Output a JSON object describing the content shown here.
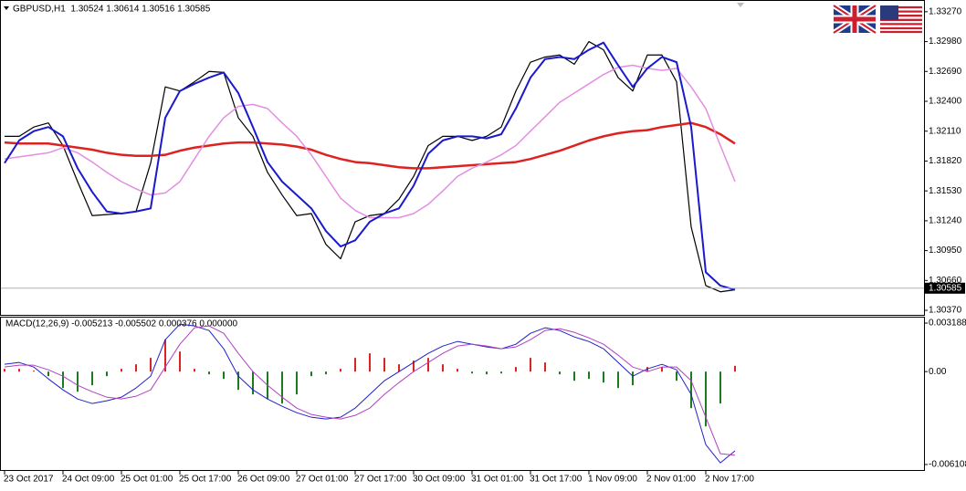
{
  "chart_data": [
    {
      "type": "line",
      "title": "GBPUSD,H1  1.30524 1.30614 1.30516 1.30585",
      "categories": [
        "23 Oct 2017",
        null,
        null,
        null,
        "24 Oct 09:00",
        null,
        null,
        null,
        "25 Oct 01:00",
        null,
        null,
        null,
        "25 Oct 17:00",
        null,
        null,
        null,
        "26 Oct 09:00",
        null,
        null,
        null,
        "27 Oct 01:00",
        null,
        null,
        null,
        "27 Oct 17:00",
        null,
        null,
        null,
        "30 Oct 09:00",
        null,
        null,
        null,
        "31 Oct 01:00",
        null,
        null,
        null,
        "31 Oct 17:00",
        null,
        null,
        null,
        "1 Nov 09:00",
        null,
        null,
        null,
        "2 Nov 01:00",
        null,
        null,
        null,
        "2 Nov 17:00",
        null,
        null
      ],
      "series": [
        {
          "color": "#000000",
          "values": [
            1.3206,
            1.3206,
            1.3215,
            1.3219,
            1.3197,
            1.3162,
            1.3129,
            1.313,
            1.3131,
            1.3133,
            1.318,
            1.3254,
            1.325,
            1.3259,
            1.3269,
            1.3268,
            1.3224,
            1.3206,
            1.3171,
            1.3149,
            1.3129,
            1.3131,
            1.3101,
            1.3087,
            1.3123,
            1.3129,
            1.3131,
            1.3145,
            1.3167,
            1.3197,
            1.3206,
            1.3206,
            1.3202,
            1.3206,
            1.3215,
            1.325,
            1.3278,
            1.3283,
            1.3285,
            1.3276,
            1.3298,
            1.329,
            1.3263,
            1.325,
            1.3285,
            1.3285,
            1.3259,
            1.3118,
            1.3061,
            1.3055,
            1.3057
          ]
        },
        {
          "color": "#dd2222",
          "values": [
            1.32,
            1.3199,
            1.3199,
            1.3199,
            1.3197,
            1.3195,
            1.3193,
            1.319,
            1.3188,
            1.3187,
            1.3187,
            1.3188,
            1.3192,
            1.3195,
            1.3197,
            1.3199,
            1.32,
            1.32,
            1.3199,
            1.3198,
            1.3196,
            1.3193,
            1.3188,
            1.3184,
            1.3181,
            1.318,
            1.3178,
            1.3176,
            1.3175,
            1.3175,
            1.3176,
            1.3177,
            1.3178,
            1.3179,
            1.318,
            1.3181,
            1.3184,
            1.3188,
            1.3192,
            1.3197,
            1.3202,
            1.3206,
            1.3209,
            1.3211,
            1.3212,
            1.3215,
            1.3217,
            1.3219,
            1.3215,
            1.3208,
            1.3199
          ]
        },
        {
          "color": "#e38ee3",
          "values": [
            1.3184,
            1.3186,
            1.3188,
            1.319,
            1.3195,
            1.319,
            1.3181,
            1.3171,
            1.3162,
            1.3155,
            1.3149,
            1.3151,
            1.3162,
            1.3184,
            1.3206,
            1.3224,
            1.3235,
            1.3237,
            1.3233,
            1.3219,
            1.3206,
            1.3188,
            1.3167,
            1.3146,
            1.3134,
            1.3127,
            1.3127,
            1.3127,
            1.3131,
            1.314,
            1.3153,
            1.3167,
            1.3175,
            1.3181,
            1.3188,
            1.3197,
            1.3211,
            1.3225,
            1.3239,
            1.3248,
            1.3257,
            1.3266,
            1.3273,
            1.3275,
            1.3272,
            1.327,
            1.3272,
            1.3254,
            1.3233,
            1.3197,
            1.3162
          ]
        },
        {
          "color": "#1a1acc",
          "values": [
            1.318,
            1.3202,
            1.3211,
            1.3215,
            1.3206,
            1.3175,
            1.3152,
            1.3133,
            1.3131,
            1.3133,
            1.3136,
            1.3224,
            1.325,
            1.3257,
            1.3263,
            1.3268,
            1.3248,
            1.3215,
            1.3181,
            1.3162,
            1.3149,
            1.3136,
            1.3114,
            1.3099,
            1.3105,
            1.3123,
            1.3131,
            1.3136,
            1.3158,
            1.3189,
            1.3202,
            1.3206,
            1.3206,
            1.3204,
            1.3208,
            1.3233,
            1.3263,
            1.3281,
            1.3283,
            1.3281,
            1.329,
            1.3297,
            1.3275,
            1.3254,
            1.3272,
            1.3283,
            1.3278,
            1.3215,
            1.3074,
            1.3061,
            1.3057
          ]
        }
      ],
      "current_price": {
        "value": 1.30585,
        "label": "1.30585"
      },
      "ylim": [
        1.30326,
        1.33375
      ],
      "yticks": [
        {
          "value": 1.3327,
          "label": "1.33270"
        },
        {
          "value": 1.3298,
          "label": "1.32980"
        },
        {
          "value": 1.3269,
          "label": "1.32690"
        },
        {
          "value": 1.324,
          "label": "1.32400"
        },
        {
          "value": 1.3211,
          "label": "1.32110"
        },
        {
          "value": 1.3182,
          "label": "1.31820"
        },
        {
          "value": 1.3153,
          "label": "1.31530"
        },
        {
          "value": 1.3124,
          "label": "1.31240"
        },
        {
          "value": 1.3095,
          "label": "1.30950"
        },
        {
          "value": 1.3066,
          "label": "1.30660"
        },
        {
          "value": 1.3037,
          "label": "1.30370"
        }
      ]
    },
    {
      "type": "macd",
      "title": "MACD(12,26,9) -0.005213 -0.005502 0.000376 0.000000",
      "histogram": {
        "up_color": "#dd2222",
        "down_color": "#1e7a1e",
        "values": [
          0.00018,
          0.00018,
          6e-05,
          -0.0003,
          -0.00108,
          -0.00132,
          -0.0009,
          -0.0003,
          0.00018,
          0.00048,
          0.0009,
          0.0021,
          0.00132,
          0.00018,
          -0.00018,
          -0.00048,
          -0.0012,
          -0.0015,
          -0.0018,
          -0.0021,
          -0.0015,
          -0.0003,
          -0.00018,
          0.00018,
          0.0009,
          0.0012,
          0.0009,
          0.00048,
          0.00072,
          0.0009,
          0.00048,
          0.00018,
          -0.00012,
          -0.00018,
          -0.00012,
          0.0003,
          0.0009,
          0.0006,
          -0.00018,
          -0.0006,
          -0.00048,
          -0.00072,
          -0.00108,
          -0.0009,
          0.0003,
          0.0003,
          -0.0006,
          -0.0024,
          -0.0036,
          -0.0021,
          0.00038
        ]
      },
      "series": [
        {
          "color": "#2020cc",
          "values": [
            0.00048,
            0.0006,
            0.0003,
            -0.00048,
            -0.0012,
            -0.0018,
            -0.0021,
            -0.00192,
            -0.00168,
            -0.00108,
            -0.0003,
            0.0021,
            0.00312,
            0.003,
            0.0027,
            0.0015,
            -0.0003,
            -0.0012,
            -0.0018,
            -0.00228,
            -0.0027,
            -0.003,
            -0.00312,
            -0.003,
            -0.0024,
            -0.0015,
            -0.0006,
            0,
            0.0006,
            0.0012,
            0.00168,
            0.00198,
            0.0018,
            0.00162,
            0.0015,
            0.0018,
            0.00252,
            0.00288,
            0.0027,
            0.00228,
            0.00198,
            0.0015,
            0.0006,
            -0.0003,
            0.00018,
            0.00048,
            0.00012,
            -0.0015,
            -0.0048,
            -0.006,
            -0.00521
          ]
        },
        {
          "color": "#b040c0",
          "values": [
            0.0003,
            0.00042,
            0.00042,
            0.00012,
            -0.0003,
            -0.0009,
            -0.00132,
            -0.00168,
            -0.0018,
            -0.00162,
            -0.0012,
            0.0003,
            0.0018,
            0.00288,
            0.003,
            0.00252,
            0.0012,
            0,
            -0.0009,
            -0.00168,
            -0.0024,
            -0.00282,
            -0.003,
            -0.00312,
            -0.00288,
            -0.0024,
            -0.0015,
            -0.00072,
            0,
            0.0006,
            0.0012,
            0.00168,
            0.0018,
            0.00168,
            0.0015,
            0.00162,
            0.0021,
            0.0027,
            0.00282,
            0.00258,
            0.00222,
            0.0018,
            0.00108,
            0.0003,
            0,
            0.0003,
            0.0003,
            -0.0006,
            -0.003,
            -0.0054,
            -0.0055
          ]
        }
      ],
      "ylim": [
        -0.00647,
        0.00355
      ],
      "yticks": [
        0.003188,
        {
          "value": 0,
          "label": "0.00"
        },
        -0.006108
      ]
    }
  ]
}
